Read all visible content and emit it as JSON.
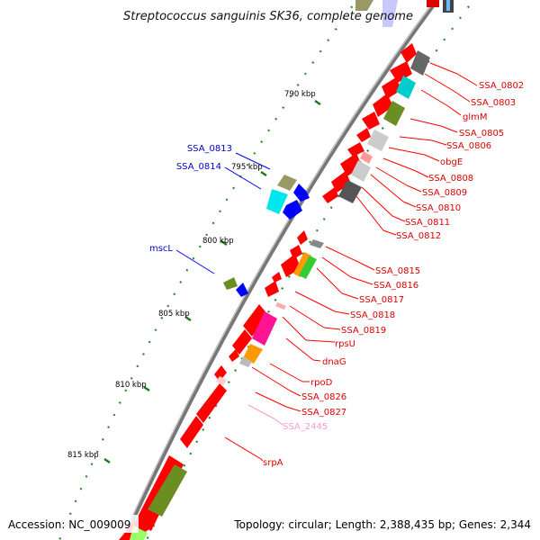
{
  "title": "Streptococcus sanguinis SK36, complete genome",
  "accession": "Accession: NC_009009",
  "topology": "Topology: circular; Length: 2,388,435 bp; Genes: 2,344",
  "scale": [
    {
      "label": "790 kbp",
      "bp": 790000
    },
    {
      "label": "795 kbp",
      "bp": 795000
    },
    {
      "label": "800 kbp",
      "bp": 800000
    },
    {
      "label": "805 kbp",
      "bp": 805000
    },
    {
      "label": "810 kbp",
      "bp": 810000
    },
    {
      "label": "815 kbp",
      "bp": 815000
    }
  ],
  "legend_colors": {
    "forward_genes": "#ff0000",
    "reverse_genes": "#0000ff",
    "rna_gene": "#ff99cc",
    "backbone": "#888888"
  },
  "forward_labels": [
    "SSA_0802",
    "SSA_0803",
    "glmM",
    "SSA_0805",
    "SSA_0806",
    "obgE",
    "SSA_0808",
    "SSA_0809",
    "SSA_0810",
    "SSA_0811",
    "SSA_0812",
    "SSA_0815",
    "SSA_0816",
    "SSA_0817",
    "SSA_0818",
    "SSA_0819",
    "rpsU",
    "dnaG",
    "rpoD",
    "SSA_0826",
    "SSA_0827",
    "SSA_2445",
    "srpA"
  ],
  "reverse_labels": [
    "SSA_0813",
    "SSA_0814",
    "mscL"
  ]
}
